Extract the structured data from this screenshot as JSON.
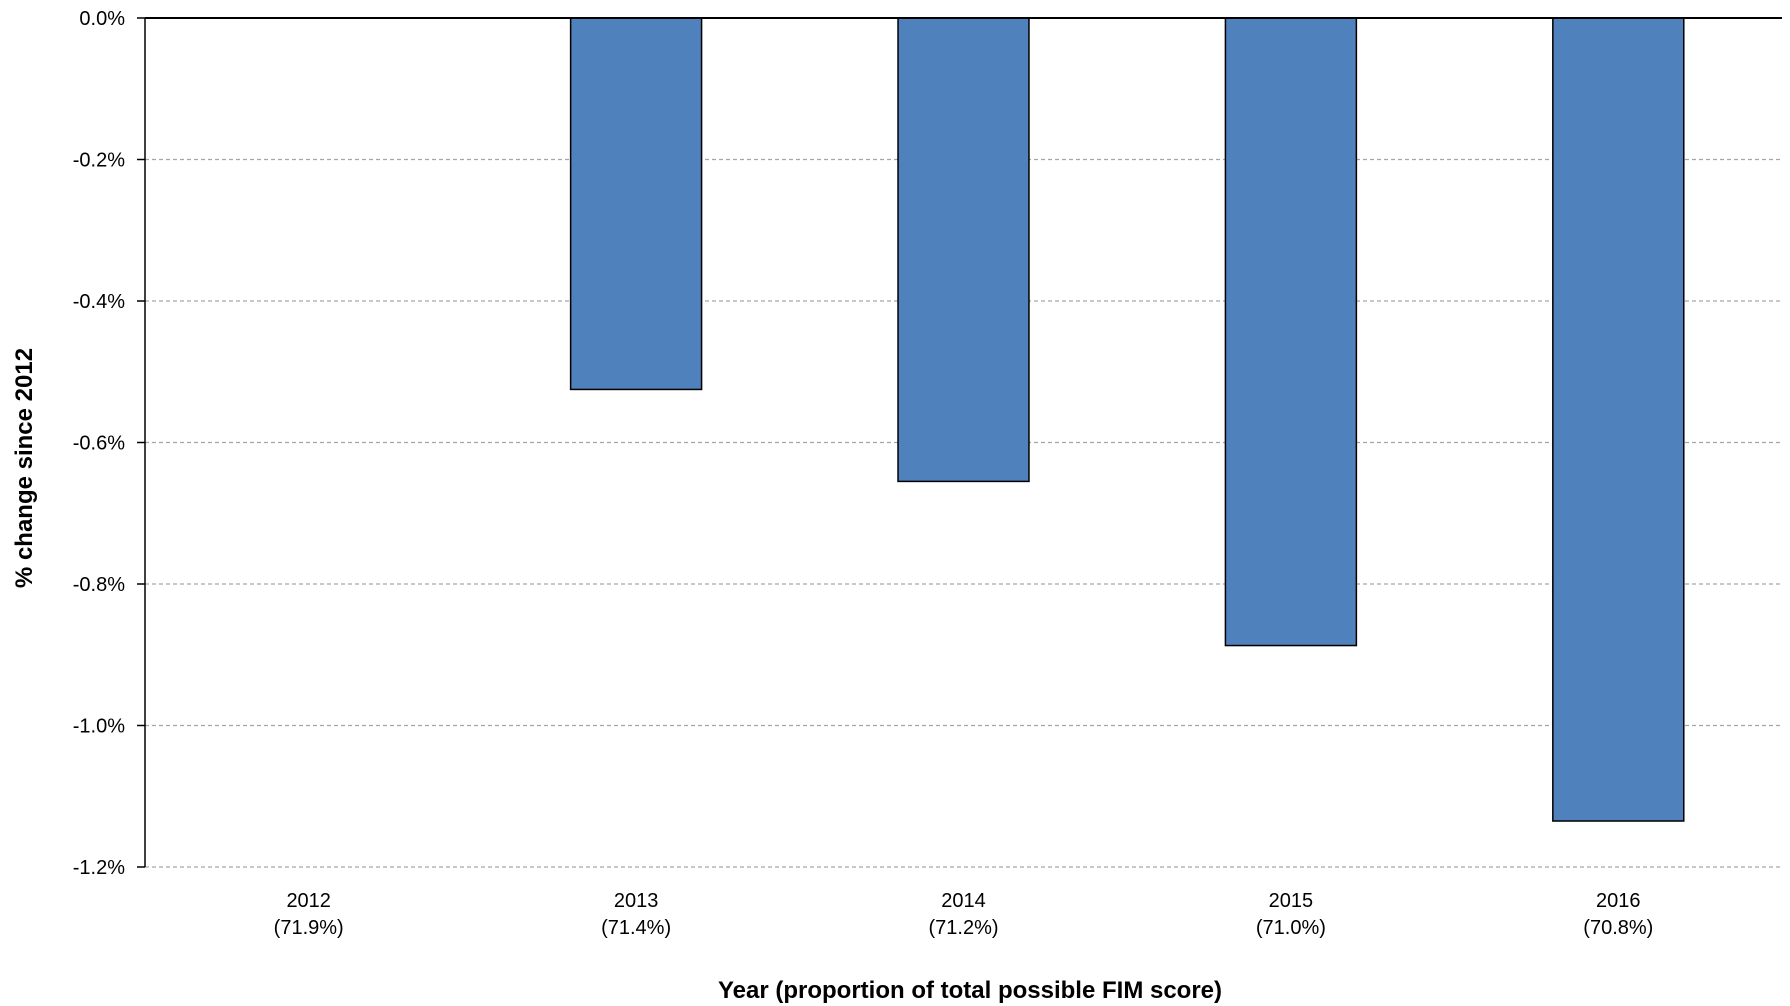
{
  "chart_data": {
    "type": "bar",
    "title": "",
    "xlabel": "Year (proportion of total possible FIM score)",
    "ylabel": "% change since 2012",
    "categories": [
      {
        "year": "2012",
        "proportion": "(71.9%)"
      },
      {
        "year": "2013",
        "proportion": "(71.4%)"
      },
      {
        "year": "2014",
        "proportion": "(71.2%)"
      },
      {
        "year": "2015",
        "proportion": "(71.0%)"
      },
      {
        "year": "2016",
        "proportion": "(70.8%)"
      }
    ],
    "values": [
      0.0,
      -0.525,
      -0.655,
      -0.887,
      -1.135
    ],
    "ylim": [
      -1.2,
      0.0
    ],
    "yticks": [
      0.0,
      -0.2,
      -0.4,
      -0.6,
      -0.8,
      -1.0,
      -1.2
    ],
    "ytick_labels": [
      "0.0%",
      "-0.2%",
      "-0.4%",
      "-0.6%",
      "-0.8%",
      "-1.0%",
      "-1.2%"
    ],
    "grid": "horizontal dashed",
    "legend": "none",
    "colors": {
      "bar": "#4f81bd",
      "bar_outline": "#000000",
      "grid": "#a6a6a6"
    }
  }
}
